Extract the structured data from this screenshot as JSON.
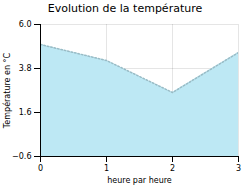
{
  "chart_data": {
    "type": "area",
    "title": "Evolution de la température",
    "xlabel": "heure par heure",
    "ylabel": "Température en °C",
    "x": [
      0,
      1,
      2,
      3
    ],
    "values": [
      5.0,
      4.2,
      2.6,
      4.6
    ],
    "color": "#bde8f4",
    "line_style": "dotted",
    "xlim": [
      0,
      3
    ],
    "ylim": [
      -0.6,
      6.0
    ],
    "xticks": [
      0,
      1,
      2,
      3
    ],
    "yticks": [
      -0.6,
      1.6,
      3.8,
      {
        "value": 6.0,
        "label": "6.0"
      }
    ],
    "grid": true
  }
}
